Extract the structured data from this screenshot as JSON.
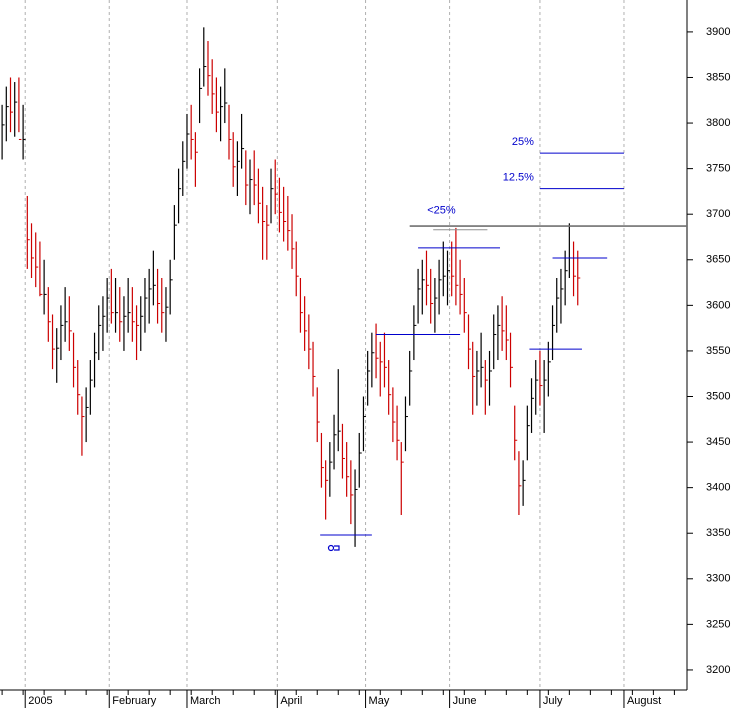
{
  "chart_data": {
    "type": "ohlc",
    "up_color": "#000000",
    "down_color": "#cc0000",
    "xlim": [
      -0.5,
      163
    ],
    "xticks": [
      {
        "value": 5.5,
        "label": "2005"
      },
      {
        "value": 25.5,
        "label": "February"
      },
      {
        "value": 44,
        "label": "March"
      },
      {
        "value": 65.5,
        "label": "April"
      },
      {
        "value": 86.5,
        "label": "May"
      },
      {
        "value": 106.5,
        "label": "June"
      },
      {
        "value": 128,
        "label": "July"
      },
      {
        "value": 148,
        "label": "August"
      }
    ],
    "ylim": [
      3178,
      3935
    ],
    "yticks": [
      3200,
      3250,
      3300,
      3350,
      3400,
      3450,
      3500,
      3550,
      3600,
      3650,
      3700,
      3750,
      3800,
      3850,
      3900
    ],
    "grid": true,
    "high": [
      3820,
      3840,
      3850,
      3845,
      3850,
      3820,
      3720,
      3690,
      3680,
      3670,
      3650,
      3620,
      3590,
      3575,
      3600,
      3620,
      3610,
      3570,
      3540,
      3500,
      3510,
      3540,
      3570,
      3600,
      3610,
      3630,
      3640,
      3630,
      3620,
      3610,
      3630,
      3620,
      3600,
      3610,
      3630,
      3640,
      3660,
      3640,
      3630,
      3620,
      3650,
      3710,
      3750,
      3780,
      3810,
      3820,
      3790,
      3860,
      3905,
      3890,
      3870,
      3850,
      3840,
      3860,
      3820,
      3790,
      3780,
      3810,
      3770,
      3760,
      3770,
      3750,
      3730,
      3710,
      3750,
      3760,
      3740,
      3730,
      3720,
      3700,
      3670,
      3630,
      3610,
      3590,
      3560,
      3510,
      3460,
      3430,
      3450,
      3480,
      3530,
      3470,
      3450,
      3430,
      3420,
      3460,
      3500,
      3550,
      3570,
      3580,
      3560,
      3570,
      3540,
      3510,
      3490,
      3450,
      3500,
      3550,
      3600,
      3640,
      3650,
      3660,
      3640,
      3630,
      3650,
      3670,
      3660,
      3670,
      3685,
      3650,
      3630,
      3590,
      3560,
      3550,
      3570,
      3540,
      3550,
      3590,
      3600,
      3610,
      3600,
      3570,
      3490,
      3440,
      3430,
      3490,
      3520,
      3540,
      3550,
      3540,
      3560,
      3600,
      3630,
      3640,
      3660,
      3690,
      3670,
      3660
    ],
    "low": [
      3760,
      3780,
      3790,
      3785,
      3790,
      3760,
      3640,
      3630,
      3620,
      3610,
      3590,
      3560,
      3530,
      3515,
      3540,
      3560,
      3550,
      3510,
      3480,
      3435,
      3450,
      3480,
      3510,
      3540,
      3550,
      3570,
      3580,
      3570,
      3560,
      3550,
      3570,
      3560,
      3540,
      3550,
      3570,
      3580,
      3600,
      3580,
      3570,
      3560,
      3590,
      3650,
      3690,
      3720,
      3750,
      3760,
      3730,
      3800,
      3840,
      3830,
      3810,
      3790,
      3780,
      3800,
      3760,
      3730,
      3720,
      3750,
      3710,
      3700,
      3710,
      3690,
      3650,
      3650,
      3690,
      3700,
      3680,
      3670,
      3660,
      3640,
      3610,
      3570,
      3550,
      3530,
      3500,
      3450,
      3400,
      3365,
      3390,
      3420,
      3440,
      3410,
      3390,
      3360,
      3335,
      3400,
      3440,
      3490,
      3510,
      3520,
      3500,
      3510,
      3480,
      3450,
      3430,
      3370,
      3440,
      3490,
      3540,
      3580,
      3590,
      3600,
      3580,
      3570,
      3590,
      3610,
      3600,
      3610,
      3600,
      3590,
      3570,
      3530,
      3480,
      3490,
      3510,
      3480,
      3490,
      3530,
      3540,
      3550,
      3540,
      3510,
      3430,
      3370,
      3380,
      3430,
      3460,
      3480,
      3490,
      3460,
      3500,
      3540,
      3570,
      3580,
      3600,
      3630,
      3610,
      3600
    ],
    "close": [
      3798,
      3818,
      3812,
      3823,
      3782,
      3782,
      3672,
      3652,
      3642,
      3612,
      3612,
      3582,
      3552,
      3553,
      3578,
      3582,
      3572,
      3532,
      3502,
      3478,
      3488,
      3518,
      3548,
      3578,
      3588,
      3608,
      3592,
      3592,
      3582,
      3588,
      3592,
      3582,
      3578,
      3588,
      3608,
      3618,
      3622,
      3602,
      3592,
      3598,
      3628,
      3688,
      3728,
      3758,
      3788,
      3782,
      3768,
      3838,
      3862,
      3852,
      3832,
      3812,
      3818,
      3822,
      3782,
      3752,
      3758,
      3772,
      3732,
      3738,
      3732,
      3712,
      3692,
      3688,
      3728,
      3722,
      3702,
      3692,
      3682,
      3662,
      3632,
      3592,
      3572,
      3552,
      3522,
      3472,
      3422,
      3408,
      3428,
      3458,
      3462,
      3432,
      3412,
      3392,
      3398,
      3438,
      3478,
      3528,
      3548,
      3542,
      3538,
      3532,
      3502,
      3472,
      3452,
      3428,
      3478,
      3528,
      3578,
      3618,
      3628,
      3622,
      3602,
      3608,
      3628,
      3632,
      3638,
      3632,
      3622,
      3612,
      3592,
      3552,
      3522,
      3528,
      3532,
      3518,
      3528,
      3568,
      3578,
      3572,
      3562,
      3532,
      3452,
      3402,
      3408,
      3468,
      3498,
      3518,
      3512,
      3518,
      3538,
      3578,
      3608,
      3618,
      3638,
      3652,
      3632,
      3630
    ],
    "levels": [
      {
        "value": 3687,
        "from": 97,
        "to": 163,
        "color": "#707070"
      },
      {
        "value": 3683,
        "from": 102.6,
        "to": 115.5,
        "color": "#909090",
        "label": "<25%"
      },
      {
        "value": 3767,
        "from": 128,
        "to": 148,
        "color": "#0000cc",
        "label": "25%"
      },
      {
        "value": 3728,
        "from": 128,
        "to": 148,
        "color": "#0000cc",
        "label": "12.5%"
      },
      {
        "value": 3663,
        "from": 99,
        "to": 118.5,
        "color": "#0000cc"
      },
      {
        "value": 3652,
        "from": 131,
        "to": 144,
        "color": "#0000cc"
      },
      {
        "value": 3568,
        "from": 89,
        "to": 109,
        "color": "#0000cc"
      },
      {
        "value": 3552,
        "from": 125.5,
        "to": 138,
        "color": "#0000cc"
      },
      {
        "value": 3348,
        "from": 75.7,
        "to": 88,
        "color": "#0000cc"
      }
    ]
  }
}
